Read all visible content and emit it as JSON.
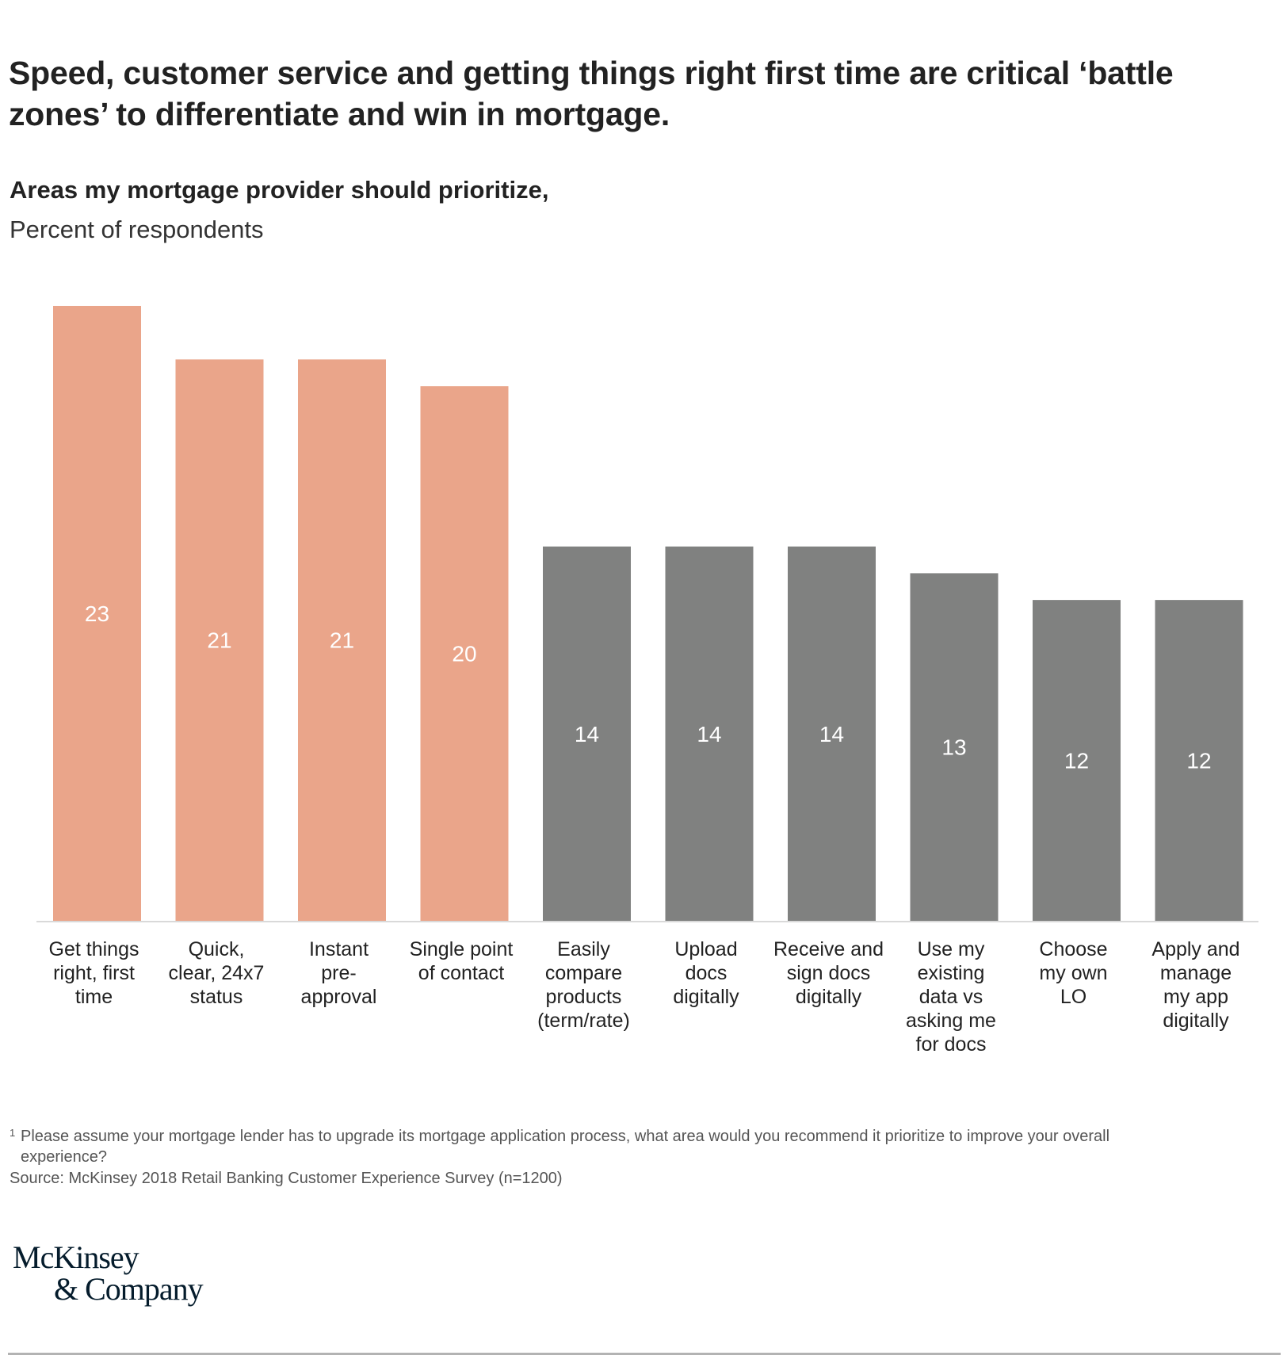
{
  "header": {
    "title": "Speed, customer service and getting things right first time are critical ‘battle zones’ to differentiate and win in mortgage.",
    "subtitle": "Areas my mortgage provider should prioritize,",
    "unit": "Percent of respondents"
  },
  "colors": {
    "highlight": "#EAA58A",
    "neutral": "#808180",
    "axis": "#D9D9D9",
    "value_text": "#FFFFFF"
  },
  "chart_data": {
    "type": "bar",
    "title": "Areas my mortgage provider should prioritize,",
    "subtitle": "Percent of respondents",
    "xlabel": "",
    "ylabel": "Percent of respondents",
    "ylim": [
      0,
      23
    ],
    "grid": false,
    "legend": "none",
    "categories": [
      [
        "Get things",
        "right, first",
        "time"
      ],
      [
        "Quick,",
        "clear, 24x7",
        "status"
      ],
      [
        "Instant",
        "pre-",
        "approval"
      ],
      [
        "Single point",
        "of contact"
      ],
      [
        "Easily",
        "compare",
        "products",
        "(term/rate)"
      ],
      [
        "Upload",
        "docs",
        "digitally"
      ],
      [
        "Receive and",
        "sign docs",
        "digitally"
      ],
      [
        "Use my",
        "existing",
        "data vs",
        "asking me",
        "for docs"
      ],
      [
        "Choose",
        "my own",
        "LO"
      ],
      [
        "Apply and",
        "manage",
        "my app",
        "digitally"
      ]
    ],
    "values": [
      23,
      21,
      21,
      20,
      14,
      14,
      14,
      13,
      12,
      12
    ],
    "highlighted": [
      true,
      true,
      true,
      true,
      false,
      false,
      false,
      false,
      false,
      false
    ]
  },
  "footnote": {
    "marker": "1",
    "text_line1": "Please assume your mortgage lender has to upgrade its mortgage application process, what area would you recommend it prioritize to improve your overall",
    "text_line2": "experience?",
    "source": "Source: McKinsey 2018 Retail Banking Customer Experience Survey (n=1200)"
  },
  "logo": {
    "line1": "McKinsey",
    "line2": "& Company"
  }
}
